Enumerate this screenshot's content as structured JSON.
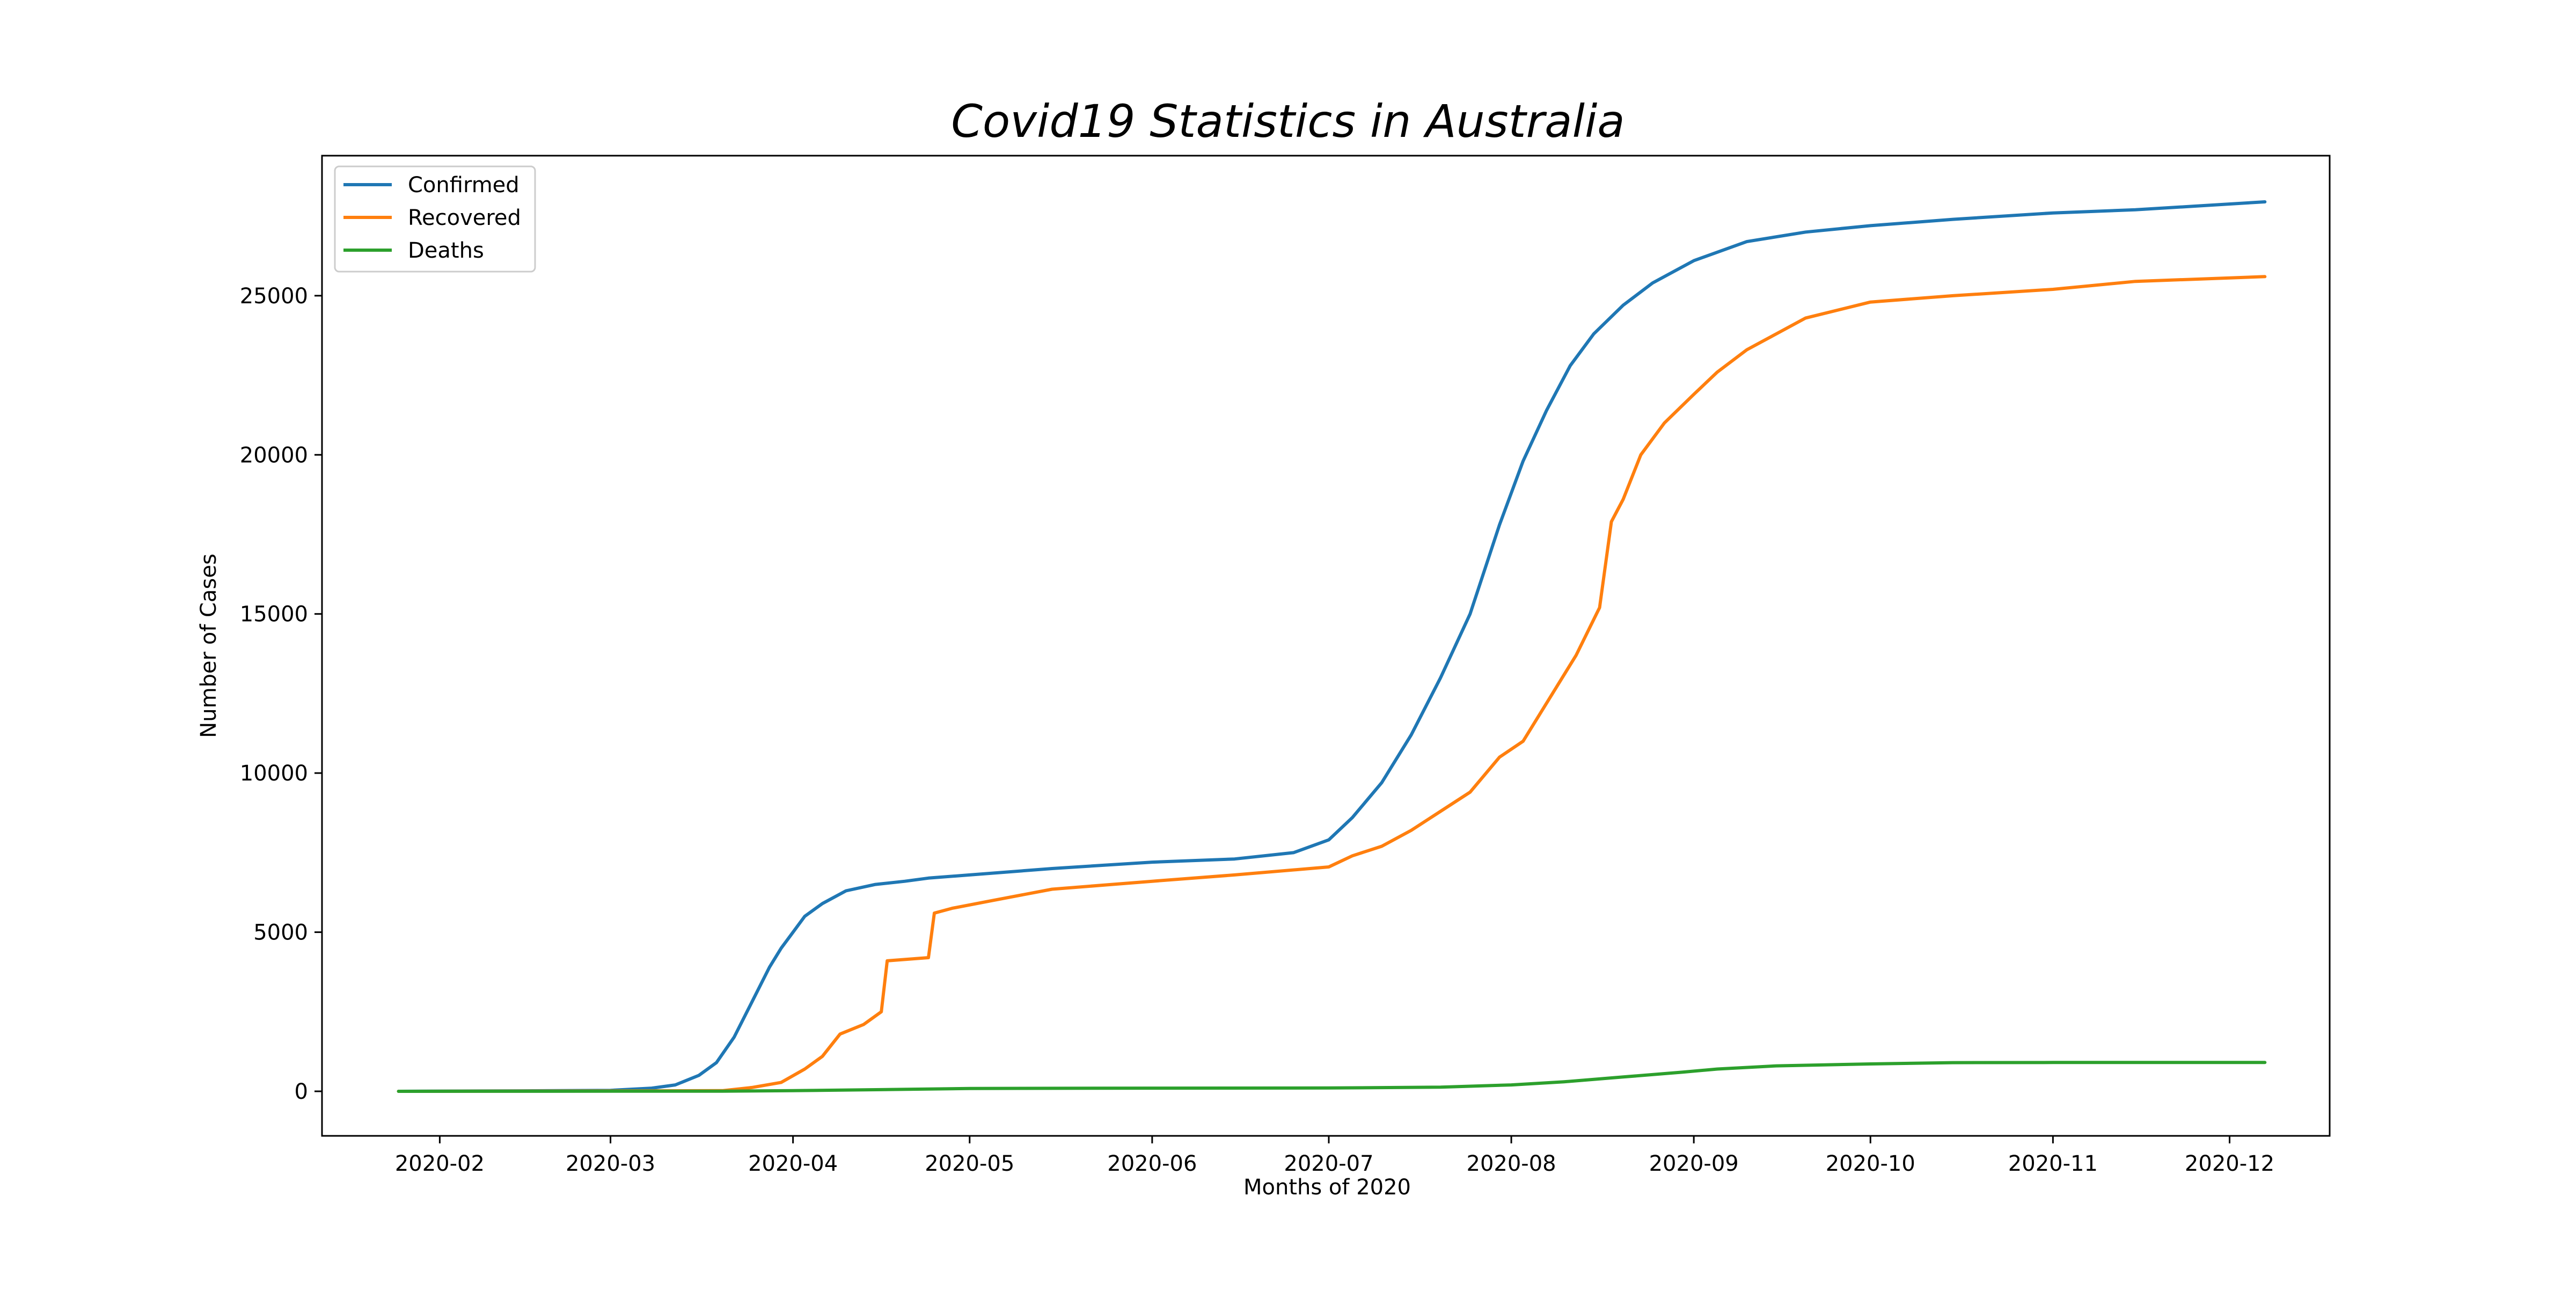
{
  "chart_data": {
    "type": "line",
    "title": "Covid19 Statistics in Australia",
    "xlabel": "Months of 2020",
    "ylabel": "Number of Cases",
    "x_tick_labels": [
      "2020-02",
      "2020-03",
      "2020-04",
      "2020-05",
      "2020-06",
      "2020-07",
      "2020-08",
      "2020-09",
      "2020-10",
      "2020-11",
      "2020-12"
    ],
    "x_ticks": [
      "2020-02-01",
      "2020-03-01",
      "2020-04-01",
      "2020-05-01",
      "2020-06-01",
      "2020-07-01",
      "2020-08-01",
      "2020-09-01",
      "2020-10-01",
      "2020-11-01",
      "2020-12-01"
    ],
    "y_ticks": [
      0,
      5000,
      10000,
      15000,
      20000,
      25000
    ],
    "xlim": [
      "2021-01-12",
      "2020-12-18"
    ],
    "ylim": [
      -1400,
      29400
    ],
    "grid": false,
    "legend_position": "top-left",
    "series": [
      {
        "name": "Confirmed",
        "color": "#1f77b4",
        "x": [
          "2020-01-25",
          "2020-02-15",
          "2020-03-01",
          "2020-03-08",
          "2020-03-12",
          "2020-03-16",
          "2020-03-19",
          "2020-03-22",
          "2020-03-25",
          "2020-03-28",
          "2020-03-30",
          "2020-04-01",
          "2020-04-03",
          "2020-04-06",
          "2020-04-10",
          "2020-04-15",
          "2020-04-20",
          "2020-04-24",
          "2020-05-01",
          "2020-05-15",
          "2020-06-01",
          "2020-06-15",
          "2020-06-25",
          "2020-07-01",
          "2020-07-05",
          "2020-07-10",
          "2020-07-15",
          "2020-07-20",
          "2020-07-25",
          "2020-07-30",
          "2020-08-03",
          "2020-08-07",
          "2020-08-11",
          "2020-08-15",
          "2020-08-20",
          "2020-08-25",
          "2020-09-01",
          "2020-09-10",
          "2020-09-20",
          "2020-10-01",
          "2020-10-15",
          "2020-11-01",
          "2020-11-15",
          "2020-12-07"
        ],
        "y": [
          0,
          15,
          30,
          100,
          200,
          500,
          900,
          1700,
          2800,
          3900,
          4500,
          5000,
          5500,
          5900,
          6300,
          6500,
          6600,
          6700,
          6800,
          7000,
          7200,
          7300,
          7500,
          7900,
          8600,
          9700,
          11200,
          13000,
          15000,
          17800,
          19800,
          21400,
          22800,
          23800,
          24700,
          25400,
          26100,
          26700,
          27000,
          27200,
          27400,
          27600,
          27700,
          27950
        ]
      },
      {
        "name": "Recovered",
        "color": "#ff7f0e",
        "x": [
          "2020-01-25",
          "2020-03-20",
          "2020-03-25",
          "2020-03-30",
          "2020-04-03",
          "2020-04-06",
          "2020-04-09",
          "2020-04-13",
          "2020-04-16",
          "2020-04-17",
          "2020-04-24",
          "2020-04-25",
          "2020-04-28",
          "2020-05-05",
          "2020-05-15",
          "2020-06-01",
          "2020-06-15",
          "2020-07-01",
          "2020-07-05",
          "2020-07-10",
          "2020-07-15",
          "2020-07-20",
          "2020-07-25",
          "2020-07-30",
          "2020-08-03",
          "2020-08-08",
          "2020-08-12",
          "2020-08-16",
          "2020-08-18",
          "2020-08-20",
          "2020-08-23",
          "2020-08-27",
          "2020-09-01",
          "2020-09-05",
          "2020-09-10",
          "2020-09-15",
          "2020-09-20",
          "2020-10-01",
          "2020-10-15",
          "2020-11-01",
          "2020-11-15",
          "2020-12-07"
        ],
        "y": [
          0,
          20,
          120,
          280,
          700,
          1100,
          1800,
          2100,
          2500,
          4100,
          4200,
          5600,
          5750,
          6000,
          6350,
          6600,
          6800,
          7050,
          7400,
          7700,
          8200,
          8800,
          9400,
          10500,
          11000,
          12500,
          13700,
          15200,
          17900,
          18600,
          20000,
          21000,
          21900,
          22600,
          23300,
          23800,
          24300,
          24800,
          25000,
          25200,
          25450,
          25600
        ]
      },
      {
        "name": "Deaths",
        "color": "#2ca02c",
        "x": [
          "2020-01-25",
          "2020-03-20",
          "2020-04-01",
          "2020-04-15",
          "2020-05-01",
          "2020-06-01",
          "2020-07-01",
          "2020-07-20",
          "2020-08-01",
          "2020-08-10",
          "2020-08-20",
          "2020-08-30",
          "2020-09-05",
          "2020-09-15",
          "2020-10-01",
          "2020-10-15",
          "2020-11-01",
          "2020-12-07"
        ],
        "y": [
          0,
          5,
          20,
          50,
          90,
          100,
          105,
          130,
          200,
          300,
          450,
          600,
          700,
          800,
          860,
          900,
          905,
          908
        ]
      }
    ]
  }
}
